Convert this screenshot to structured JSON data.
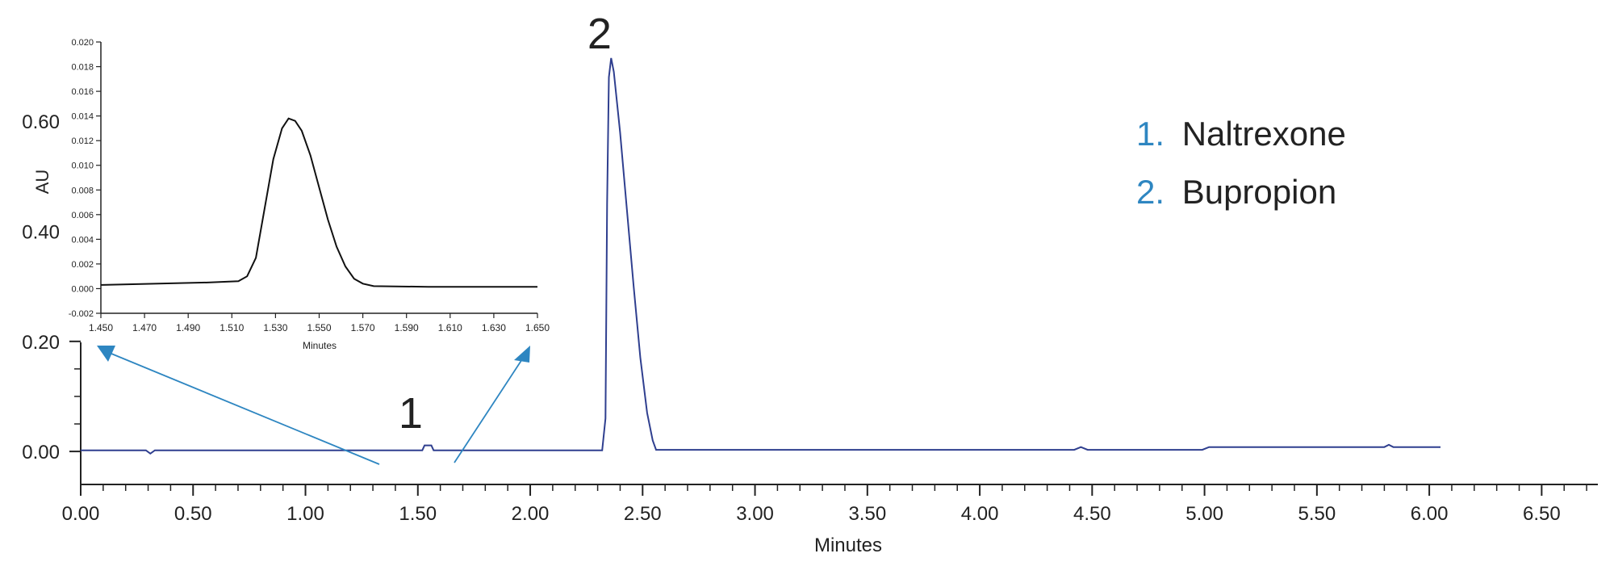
{
  "chart_data": [
    {
      "type": "line",
      "role": "main-chromatogram",
      "xlabel": "Minutes",
      "ylabel": "AU",
      "xlim": [
        0.0,
        6.75
      ],
      "ylim": [
        -0.06,
        0.75
      ],
      "x_ticks": [
        "0.00",
        "0.50",
        "1.00",
        "1.50",
        "2.00",
        "2.50",
        "3.00",
        "3.50",
        "4.00",
        "4.50",
        "5.00",
        "5.50",
        "6.00",
        "6.50"
      ],
      "y_ticks": [
        "0.00",
        "0.20",
        "0.40",
        "0.60"
      ],
      "grid": false,
      "series": [
        {
          "color": "#2f3f8f",
          "points": [
            [
              0.0,
              0.002
            ],
            [
              0.29,
              0.002
            ],
            [
              0.31,
              -0.004
            ],
            [
              0.33,
              0.002
            ],
            [
              1.52,
              0.002
            ],
            [
              1.53,
              0.011
            ],
            [
              1.56,
              0.011
            ],
            [
              1.57,
              0.002
            ],
            [
              2.32,
              0.002
            ],
            [
              2.335,
              0.06
            ],
            [
              2.342,
              0.45
            ],
            [
              2.35,
              0.68
            ],
            [
              2.36,
              0.715
            ],
            [
              2.372,
              0.69
            ],
            [
              2.4,
              0.58
            ],
            [
              2.43,
              0.44
            ],
            [
              2.46,
              0.3
            ],
            [
              2.49,
              0.17
            ],
            [
              2.52,
              0.07
            ],
            [
              2.545,
              0.02
            ],
            [
              2.56,
              0.003
            ],
            [
              4.42,
              0.003
            ],
            [
              4.45,
              0.008
            ],
            [
              4.48,
              0.003
            ],
            [
              4.99,
              0.003
            ],
            [
              5.02,
              0.008
            ],
            [
              5.8,
              0.008
            ],
            [
              5.82,
              0.012
            ],
            [
              5.84,
              0.008
            ],
            [
              6.05,
              0.008
            ]
          ]
        }
      ],
      "peak_labels": [
        {
          "text": "1",
          "x": 1.54,
          "y": 0.05
        },
        {
          "text": "2",
          "x": 2.38,
          "y": 0.74
        }
      ],
      "legend": {
        "placement": "top-right",
        "entries": [
          {
            "number": "1.",
            "name": "Naltrexone"
          },
          {
            "number": "2.",
            "name": "Bupropion"
          }
        ]
      }
    },
    {
      "type": "line",
      "role": "inset-zoom",
      "placement": "top-left",
      "xlabel": "Minutes",
      "ylabel": "",
      "xlim": [
        1.45,
        1.65
      ],
      "ylim": [
        -0.002,
        0.02
      ],
      "x_ticks": [
        "1.450",
        "1.470",
        "1.490",
        "1.510",
        "1.530",
        "1.550",
        "1.570",
        "1.590",
        "1.610",
        "1.630",
        "1.650"
      ],
      "y_ticks": [
        "-0.002",
        "0.000",
        "0.002",
        "0.004",
        "0.006",
        "0.008",
        "0.010",
        "0.012",
        "0.014",
        "0.016",
        "0.018",
        "0.020"
      ],
      "grid": false,
      "series": [
        {
          "color": "#111111",
          "points": [
            [
              1.45,
              0.0003
            ],
            [
              1.5,
              0.0005
            ],
            [
              1.513,
              0.0006
            ],
            [
              1.517,
              0.001
            ],
            [
              1.521,
              0.0025
            ],
            [
              1.525,
              0.0065
            ],
            [
              1.529,
              0.0105
            ],
            [
              1.533,
              0.013
            ],
            [
              1.536,
              0.0138
            ],
            [
              1.539,
              0.0136
            ],
            [
              1.542,
              0.0128
            ],
            [
              1.546,
              0.0108
            ],
            [
              1.55,
              0.0082
            ],
            [
              1.554,
              0.0056
            ],
            [
              1.558,
              0.0034
            ],
            [
              1.562,
              0.0018
            ],
            [
              1.566,
              0.0008
            ],
            [
              1.57,
              0.0004
            ],
            [
              1.575,
              0.0002
            ],
            [
              1.6,
              0.00015
            ],
            [
              1.65,
              0.00015
            ]
          ]
        }
      ],
      "zoom_source_x_range": [
        1.32,
        1.66
      ]
    }
  ],
  "colors": {
    "trace": "#2f3f8f",
    "accent": "#2e86c1",
    "text": "#222222"
  }
}
